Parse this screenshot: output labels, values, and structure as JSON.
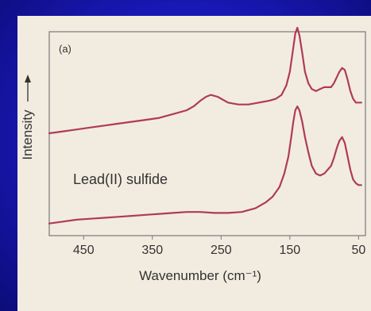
{
  "chart_data": {
    "type": "line",
    "panel_label": "(a)",
    "xlabel": "Wavenumber (cm⁻¹)",
    "ylabel": "Intensity",
    "xlim": [
      500,
      40
    ],
    "x_reversed": true,
    "xticks": [
      450,
      350,
      250,
      150,
      50
    ],
    "grid": false,
    "line_color": "#b03a58",
    "series": [
      {
        "name": "",
        "x": [
          500,
          480,
          460,
          440,
          420,
          400,
          380,
          360,
          340,
          320,
          300,
          290,
          280,
          272,
          265,
          255,
          240,
          225,
          210,
          195,
          180,
          170,
          162,
          155,
          150,
          146,
          142,
          139,
          136,
          132,
          128,
          123,
          118,
          112,
          106,
          100,
          95,
          90,
          86,
          82,
          78,
          74,
          70,
          66,
          62,
          58,
          54,
          50,
          46
        ],
        "y": [
          0.5,
          0.51,
          0.52,
          0.53,
          0.54,
          0.55,
          0.56,
          0.57,
          0.58,
          0.6,
          0.62,
          0.64,
          0.67,
          0.69,
          0.7,
          0.69,
          0.66,
          0.65,
          0.65,
          0.66,
          0.67,
          0.68,
          0.7,
          0.75,
          0.82,
          0.92,
          1.02,
          1.05,
          1.01,
          0.92,
          0.82,
          0.76,
          0.73,
          0.72,
          0.73,
          0.74,
          0.74,
          0.74,
          0.76,
          0.79,
          0.82,
          0.84,
          0.83,
          0.78,
          0.72,
          0.68,
          0.66,
          0.66,
          0.66
        ]
      },
      {
        "name": "Lead(II) sulfide",
        "annotation": "Lead(II) sulfide",
        "x": [
          500,
          480,
          460,
          440,
          420,
          400,
          380,
          360,
          340,
          320,
          300,
          280,
          260,
          240,
          220,
          200,
          185,
          175,
          165,
          158,
          152,
          148,
          145,
          142,
          139,
          136,
          132,
          128,
          123,
          118,
          112,
          106,
          100,
          95,
          90,
          86,
          82,
          78,
          74,
          70,
          66,
          62,
          58,
          54,
          50,
          46
        ],
        "y": [
          0.03,
          0.04,
          0.05,
          0.055,
          0.06,
          0.065,
          0.07,
          0.075,
          0.08,
          0.085,
          0.09,
          0.09,
          0.085,
          0.085,
          0.09,
          0.11,
          0.14,
          0.17,
          0.22,
          0.29,
          0.38,
          0.48,
          0.56,
          0.62,
          0.64,
          0.62,
          0.56,
          0.48,
          0.4,
          0.33,
          0.29,
          0.28,
          0.29,
          0.31,
          0.33,
          0.37,
          0.42,
          0.46,
          0.48,
          0.45,
          0.38,
          0.31,
          0.26,
          0.24,
          0.23,
          0.23
        ]
      }
    ]
  }
}
